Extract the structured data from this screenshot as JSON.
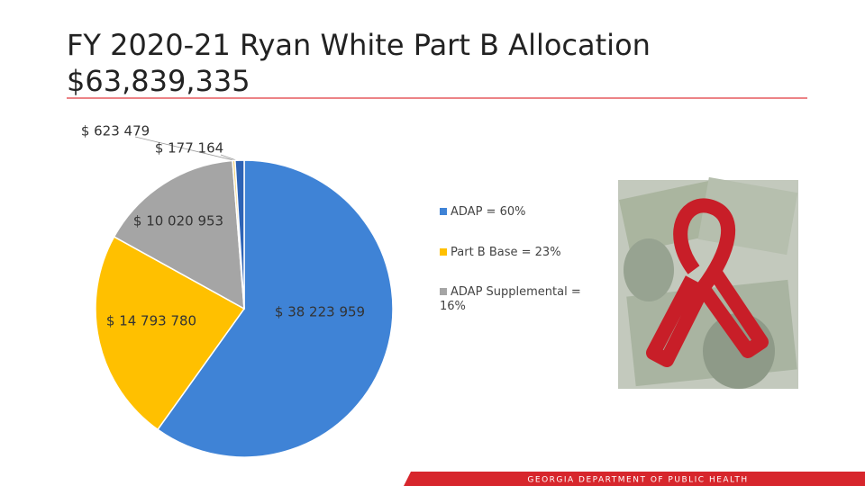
{
  "chart_data": {
    "type": "pie",
    "title": "FY 2020-21 Ryan White Part B Allocation",
    "subtitle": "$63,839,335",
    "categories": [
      "ADAP = 60%",
      "Part B Base = 23%",
      "ADAP Supplemental = 16%",
      null,
      null
    ],
    "values": [
      38223959,
      14793780,
      10020953,
      177164,
      623479
    ],
    "value_labels": [
      "$ 38 223 959",
      "$ 14 793 780",
      "$ 10 020 953",
      "$ 177 164",
      "$ 623 479"
    ],
    "colors": [
      "#3f83d6",
      "#ffc000",
      "#a5a5a5",
      "#f2d27a",
      "#2e63b5"
    ],
    "legend": "right"
  },
  "footer": "GEORGIA DEPARTMENT OF PUBLIC HEALTH"
}
